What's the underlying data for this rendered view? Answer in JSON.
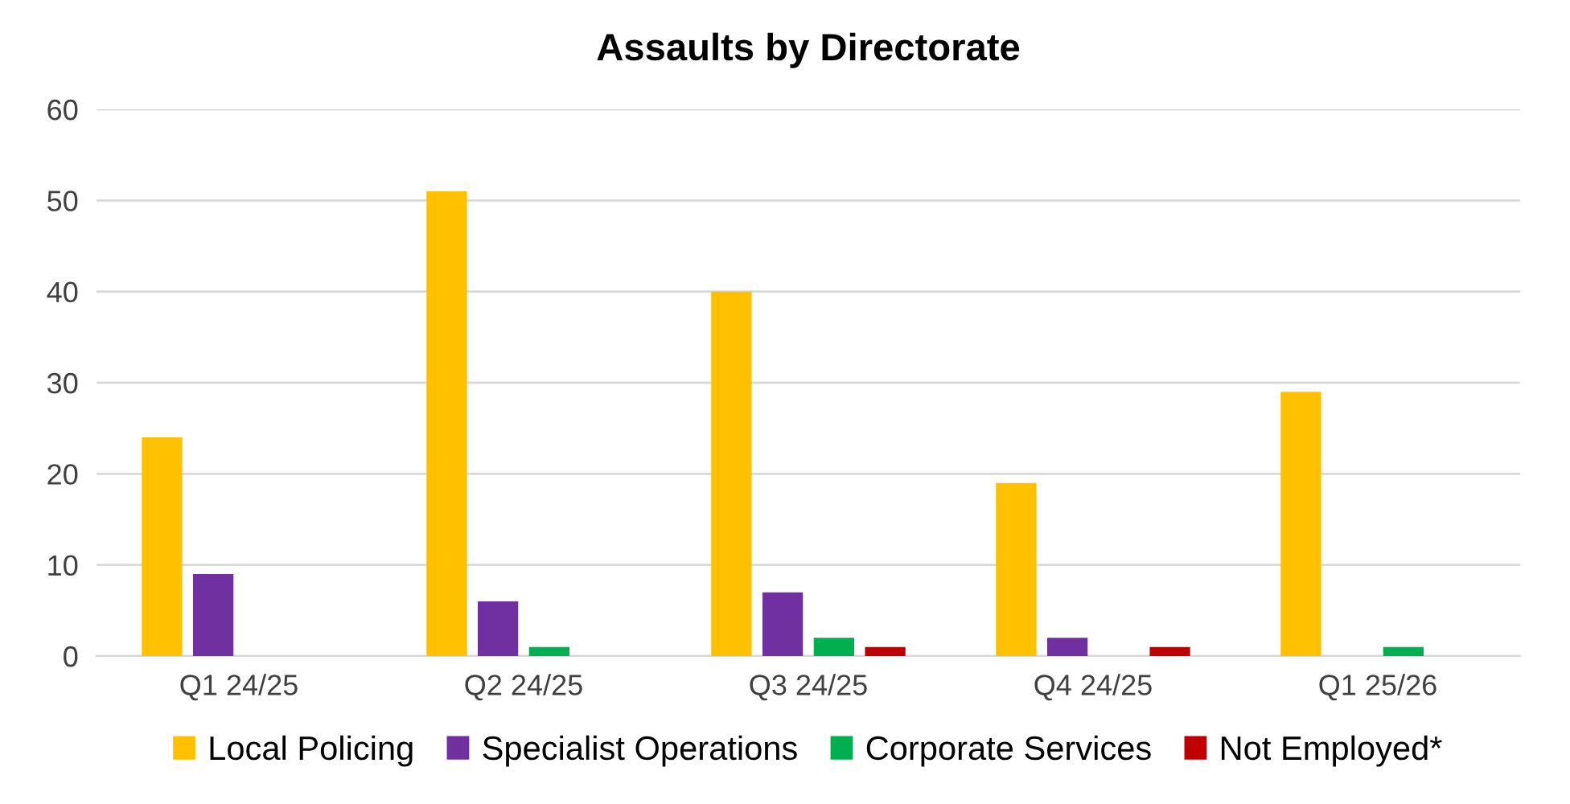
{
  "chart_data": {
    "type": "bar",
    "title": "Assaults by Directorate",
    "categories": [
      "Q1 24/25",
      "Q2 24/25",
      "Q3 24/25",
      "Q4 24/25",
      "Q1 25/26"
    ],
    "series": [
      {
        "name": "Local Policing",
        "color": "#ffc000",
        "values": [
          24,
          51,
          40,
          19,
          29
        ]
      },
      {
        "name": "Specialist Operations",
        "color": "#7030a0",
        "values": [
          9,
          6,
          7,
          2,
          0
        ]
      },
      {
        "name": "Corporate Services",
        "color": "#00b050",
        "values": [
          0,
          1,
          2,
          0,
          1
        ]
      },
      {
        "name": "Not Employed*",
        "color": "#c00000",
        "values": [
          0,
          0,
          1,
          1,
          0
        ]
      }
    ],
    "ylim": [
      0,
      60
    ],
    "yticks": [
      0,
      10,
      20,
      30,
      40,
      50,
      60
    ],
    "grid": "y",
    "legend": "bottom"
  }
}
